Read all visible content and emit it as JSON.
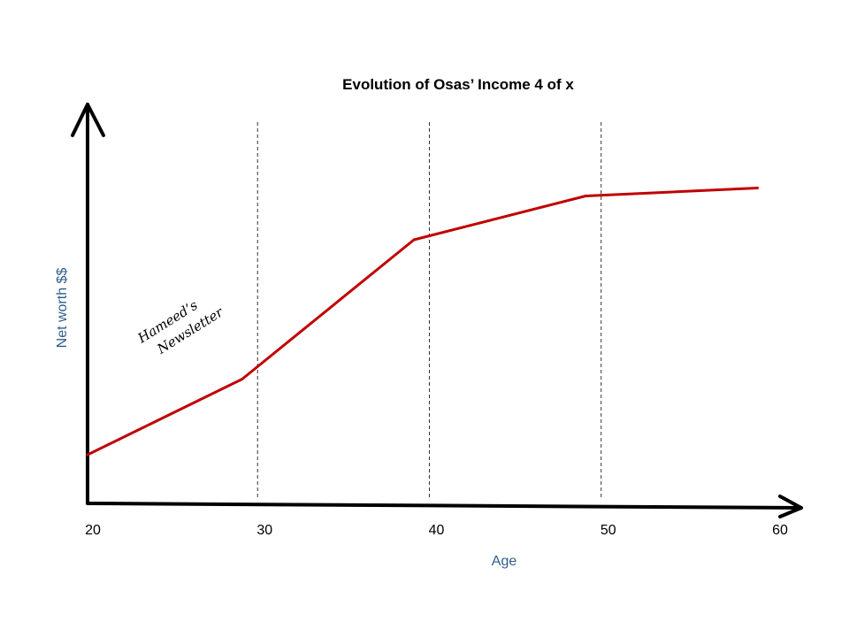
{
  "chart_data": {
    "type": "line",
    "title": "Evolution of Osas’ Income 4 of x",
    "xlabel": "Age",
    "ylabel": "Net worth $$",
    "x_ticks": [
      "20",
      "30",
      "40",
      "50",
      "60"
    ],
    "xlim": [
      20,
      60
    ],
    "ylim": [
      0,
      100
    ],
    "grid": "vertical dashed lines at 30, 40, 50",
    "legend": "none",
    "series": [
      {
        "color": "#c00000",
        "points": [
          {
            "x": 20,
            "y": 12
          },
          {
            "x": 29,
            "y": 31
          },
          {
            "x": 39,
            "y": 66
          },
          {
            "x": 49,
            "y": 77
          },
          {
            "x": 59,
            "y": 79
          }
        ]
      }
    ],
    "watermark": [
      "Hameed’s",
      "Newsletter"
    ]
  }
}
